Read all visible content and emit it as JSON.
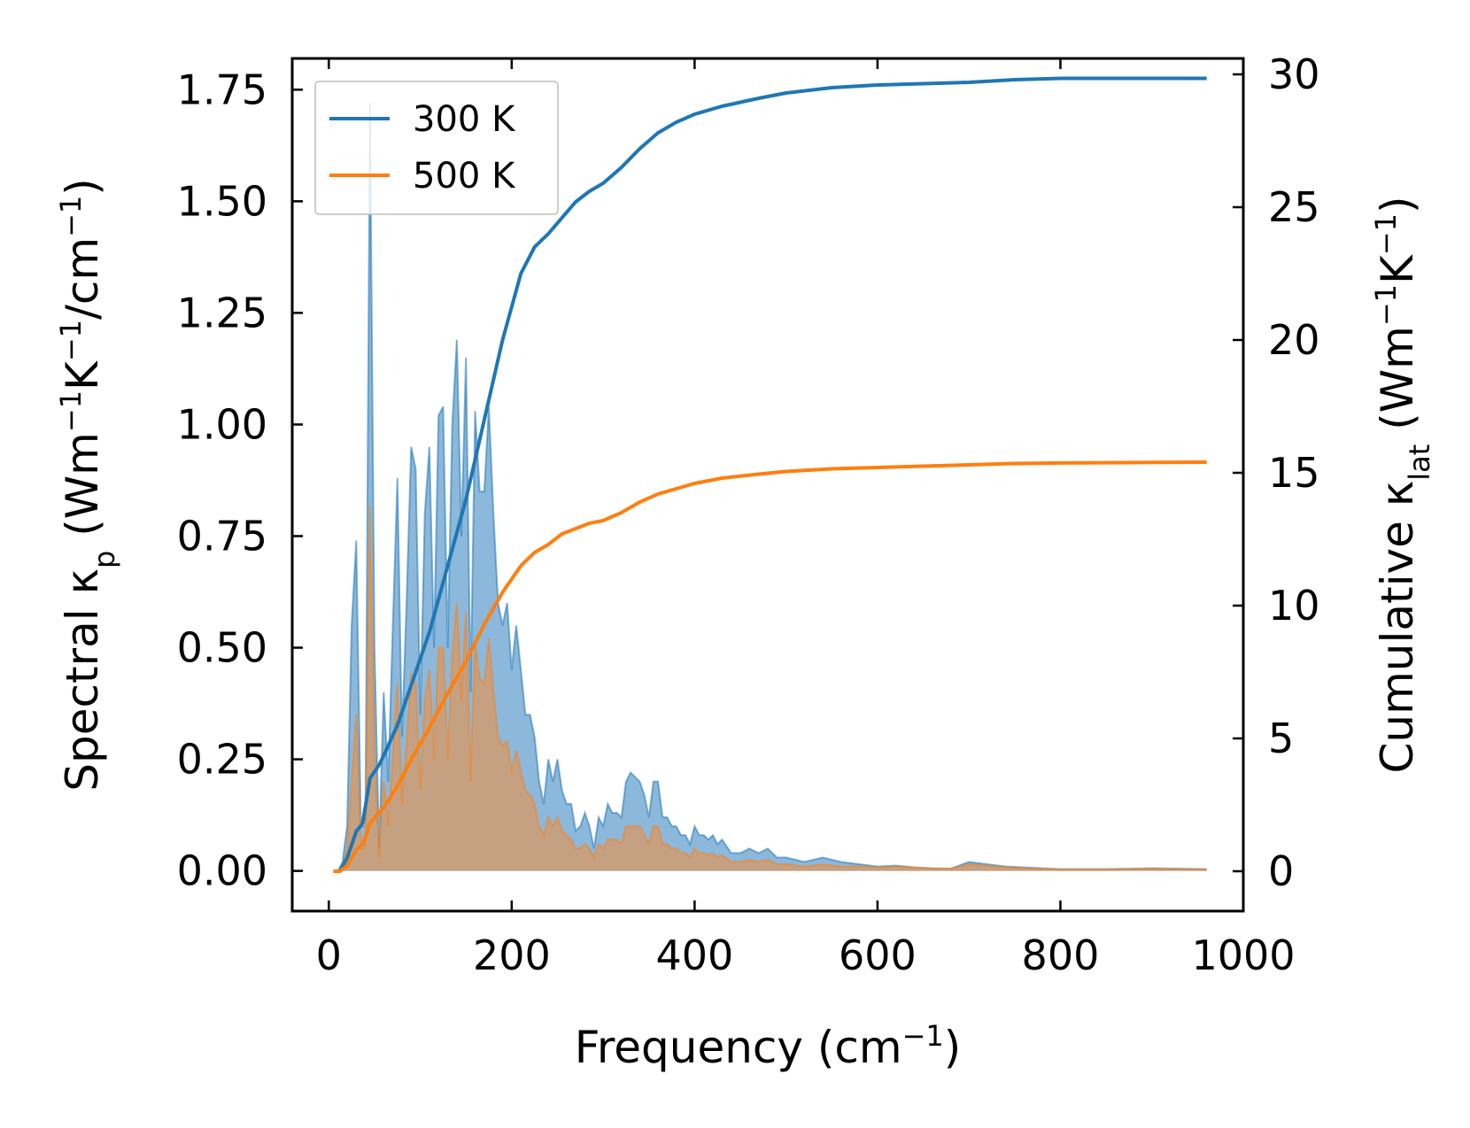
{
  "chart_data": {
    "type": "area",
    "title": "",
    "xlabel": {
      "main": "Frequency (cm",
      "sup": "−1",
      "tail": ")"
    },
    "ylabel_left": {
      "a": "Spectral κ",
      "a_sub": "p",
      "b": " (Wm",
      "b_sup": "−1",
      "c": "K",
      "c_sup": "−1",
      "d": "/cm",
      "d_sup": "−1",
      "e": ")"
    },
    "ylabel_right": {
      "a": "Cumulative κ",
      "a_sub": "lat",
      "b": " (Wm",
      "b_sup": "−1",
      "c": "K",
      "c_sup": "−1",
      "d": ")"
    },
    "xlim": [
      -40,
      1000
    ],
    "ylim_left": [
      -0.09,
      1.82
    ],
    "ylim_right": [
      -1.5,
      30.6
    ],
    "x_ticks": [
      0,
      200,
      400,
      600,
      800,
      1000
    ],
    "x_tick_labels": [
      "0",
      "200",
      "400",
      "600",
      "800",
      "1000"
    ],
    "y_left_ticks": [
      0,
      0.25,
      0.5,
      0.75,
      1.0,
      1.25,
      1.5,
      1.75
    ],
    "y_left_tick_labels": [
      "0.00",
      "0.25",
      "0.50",
      "0.75",
      "1.00",
      "1.25",
      "1.50",
      "1.75"
    ],
    "y_right_ticks": [
      0,
      5,
      10,
      15,
      20,
      25,
      30
    ],
    "y_right_tick_labels": [
      "0",
      "5",
      "10",
      "15",
      "20",
      "25",
      "30"
    ],
    "legend": {
      "position": "top-left",
      "entries": [
        "300 K",
        "500 K"
      ]
    },
    "colors": {
      "300K": "#1f77b4",
      "500K": "#ff7f0e",
      "fill_300K": "#86b4d9",
      "fill_500K": "#cb9e78"
    },
    "spectral": {
      "x": [
        5,
        10,
        15,
        20,
        25,
        30,
        35,
        40,
        45,
        50,
        55,
        60,
        65,
        70,
        75,
        80,
        85,
        90,
        95,
        100,
        105,
        110,
        115,
        120,
        125,
        130,
        135,
        140,
        145,
        150,
        155,
        160,
        165,
        170,
        175,
        180,
        185,
        190,
        195,
        200,
        205,
        210,
        215,
        220,
        225,
        230,
        235,
        240,
        245,
        250,
        255,
        260,
        265,
        270,
        275,
        280,
        285,
        290,
        295,
        300,
        305,
        310,
        315,
        320,
        325,
        330,
        335,
        340,
        345,
        350,
        355,
        360,
        365,
        370,
        375,
        380,
        385,
        390,
        395,
        400,
        405,
        410,
        415,
        420,
        425,
        430,
        440,
        450,
        460,
        470,
        480,
        490,
        500,
        520,
        540,
        560,
        580,
        600,
        620,
        640,
        660,
        680,
        700,
        720,
        740,
        760,
        780,
        800,
        850,
        900,
        960
      ],
      "series": [
        {
          "name": "300 K",
          "values": [
            0.0,
            0.0,
            0.02,
            0.1,
            0.55,
            0.74,
            0.1,
            0.1,
            1.72,
            0.5,
            0.05,
            0.4,
            0.2,
            0.55,
            0.88,
            0.3,
            0.6,
            0.95,
            0.9,
            0.35,
            0.8,
            0.95,
            0.5,
            1.02,
            1.04,
            0.5,
            1.0,
            1.19,
            0.75,
            1.15,
            0.4,
            1.03,
            0.85,
            0.85,
            1.04,
            0.8,
            0.6,
            0.55,
            0.6,
            0.45,
            0.55,
            0.45,
            0.35,
            0.35,
            0.3,
            0.2,
            0.15,
            0.25,
            0.2,
            0.25,
            0.18,
            0.15,
            0.15,
            0.09,
            0.1,
            0.13,
            0.1,
            0.05,
            0.12,
            0.1,
            0.15,
            0.13,
            0.13,
            0.12,
            0.2,
            0.22,
            0.21,
            0.2,
            0.17,
            0.12,
            0.2,
            0.2,
            0.12,
            0.12,
            0.1,
            0.1,
            0.08,
            0.08,
            0.06,
            0.1,
            0.08,
            0.08,
            0.07,
            0.08,
            0.06,
            0.07,
            0.04,
            0.04,
            0.05,
            0.04,
            0.05,
            0.03,
            0.03,
            0.02,
            0.03,
            0.02,
            0.015,
            0.01,
            0.012,
            0.008,
            0.006,
            0.005,
            0.02,
            0.015,
            0.01,
            0.008,
            0.006,
            0.004,
            0.004,
            0.006,
            0.004
          ]
        },
        {
          "name": "500 K",
          "values": [
            0.0,
            0.0,
            0.01,
            0.05,
            0.2,
            0.35,
            0.05,
            0.05,
            0.82,
            0.25,
            0.03,
            0.2,
            0.1,
            0.25,
            0.42,
            0.15,
            0.28,
            0.44,
            0.42,
            0.18,
            0.38,
            0.45,
            0.25,
            0.5,
            0.5,
            0.25,
            0.48,
            0.6,
            0.38,
            0.58,
            0.2,
            0.51,
            0.43,
            0.42,
            0.52,
            0.4,
            0.3,
            0.28,
            0.29,
            0.22,
            0.27,
            0.22,
            0.18,
            0.17,
            0.15,
            0.1,
            0.08,
            0.12,
            0.1,
            0.12,
            0.09,
            0.08,
            0.07,
            0.05,
            0.05,
            0.06,
            0.05,
            0.03,
            0.06,
            0.05,
            0.07,
            0.07,
            0.07,
            0.06,
            0.1,
            0.1,
            0.1,
            0.1,
            0.08,
            0.06,
            0.1,
            0.1,
            0.06,
            0.06,
            0.05,
            0.05,
            0.04,
            0.04,
            0.03,
            0.05,
            0.04,
            0.04,
            0.035,
            0.04,
            0.03,
            0.035,
            0.02,
            0.02,
            0.025,
            0.02,
            0.025,
            0.015,
            0.015,
            0.01,
            0.015,
            0.01,
            0.01,
            0.008,
            0.01,
            0.008,
            0.005,
            0.005,
            0.015,
            0.012,
            0.008,
            0.006,
            0.005,
            0.003,
            0.003,
            0.005,
            0.003
          ]
        }
      ]
    },
    "cumulative": {
      "x": [
        5,
        12,
        20,
        30,
        37,
        45,
        55,
        62,
        75,
        90,
        110,
        130,
        150,
        170,
        190,
        210,
        225,
        240,
        255,
        270,
        285,
        300,
        320,
        340,
        360,
        380,
        400,
        430,
        470,
        500,
        550,
        600,
        650,
        700,
        750,
        800,
        850,
        900,
        960
      ],
      "series": [
        {
          "name": "300 K",
          "values": [
            0,
            0.0,
            0.5,
            1.5,
            1.8,
            3.5,
            4.0,
            4.5,
            5.5,
            7.0,
            9.0,
            11.5,
            14.0,
            17.0,
            20.0,
            22.5,
            23.5,
            24.0,
            24.6,
            25.2,
            25.6,
            25.9,
            26.5,
            27.2,
            27.8,
            28.2,
            28.5,
            28.8,
            29.1,
            29.3,
            29.5,
            29.6,
            29.65,
            29.7,
            29.8,
            29.85,
            29.85,
            29.85,
            29.85
          ]
        },
        {
          "name": "500 K",
          "values": [
            0,
            0.0,
            0.2,
            0.8,
            1.0,
            1.8,
            2.2,
            2.5,
            3.2,
            4.2,
            5.4,
            6.7,
            7.9,
            9.3,
            10.5,
            11.5,
            12.0,
            12.3,
            12.7,
            12.9,
            13.1,
            13.2,
            13.5,
            13.9,
            14.2,
            14.4,
            14.6,
            14.8,
            14.95,
            15.05,
            15.15,
            15.2,
            15.25,
            15.3,
            15.35,
            15.37,
            15.38,
            15.39,
            15.4
          ]
        }
      ]
    }
  }
}
